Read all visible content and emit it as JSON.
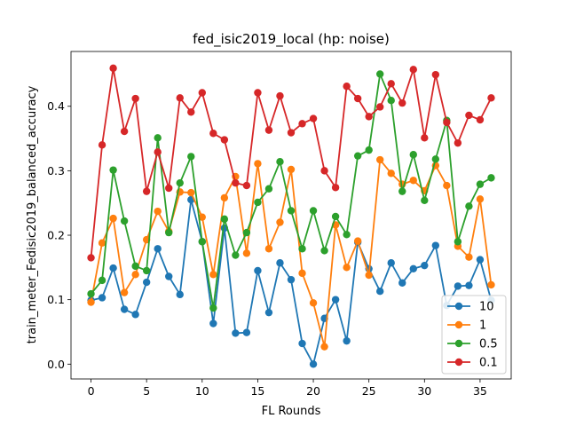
{
  "chart_data": {
    "type": "line",
    "title": "fed_isic2019_local (hp: noise)",
    "xlabel": "FL Rounds",
    "ylabel": "train_meter_Fedisic2019_balanced_accuracy",
    "xlim": [
      -1.8,
      37.8
    ],
    "ylim": [
      -0.023,
      0.485
    ],
    "xticks": [
      0,
      5,
      10,
      15,
      20,
      25,
      30,
      35
    ],
    "yticks": [
      0.0,
      0.1,
      0.2,
      0.3,
      0.4
    ],
    "ytick_labels": [
      "0.0",
      "0.1",
      "0.2",
      "0.3",
      "0.4"
    ],
    "grid": false,
    "legend_position": "lower-right",
    "x": [
      0,
      1,
      2,
      3,
      4,
      5,
      6,
      7,
      8,
      9,
      10,
      11,
      12,
      13,
      14,
      15,
      16,
      17,
      18,
      19,
      20,
      21,
      22,
      23,
      24,
      25,
      26,
      27,
      28,
      29,
      30,
      31,
      32,
      33,
      34,
      35,
      36
    ],
    "series": [
      {
        "name": "10",
        "color": "#1f77b4",
        "values": [
          0.099,
          0.103,
          0.149,
          0.085,
          0.077,
          0.127,
          0.179,
          0.136,
          0.108,
          0.255,
          0.19,
          0.063,
          0.211,
          0.048,
          0.049,
          0.145,
          0.08,
          0.157,
          0.131,
          0.032,
          0.0,
          0.071,
          0.1,
          0.036,
          0.189,
          0.148,
          0.113,
          0.157,
          0.126,
          0.148,
          0.153,
          0.184,
          0.091,
          0.121,
          0.122,
          0.162,
          0.099
        ]
      },
      {
        "name": "1",
        "color": "#ff7f0e",
        "values": [
          0.096,
          0.188,
          0.226,
          0.111,
          0.139,
          0.193,
          0.237,
          0.206,
          0.267,
          0.266,
          0.228,
          0.139,
          0.258,
          0.291,
          0.172,
          0.311,
          0.179,
          0.22,
          0.302,
          0.141,
          0.095,
          0.027,
          0.216,
          0.15,
          0.191,
          0.138,
          0.317,
          0.296,
          0.279,
          0.285,
          0.269,
          0.308,
          0.277,
          0.183,
          0.166,
          0.256,
          0.123
        ]
      },
      {
        "name": "0.5",
        "color": "#2ca02c",
        "values": [
          0.109,
          0.13,
          0.301,
          0.222,
          0.152,
          0.145,
          0.351,
          0.204,
          0.281,
          0.322,
          0.19,
          0.087,
          0.225,
          0.169,
          0.204,
          0.251,
          0.272,
          0.314,
          0.238,
          0.179,
          0.238,
          0.176,
          0.229,
          0.201,
          0.323,
          0.332,
          0.45,
          0.409,
          0.268,
          0.325,
          0.254,
          0.318,
          0.378,
          0.19,
          0.245,
          0.279,
          0.289
        ]
      },
      {
        "name": "0.1",
        "color": "#d62728",
        "values": [
          0.165,
          0.34,
          0.459,
          0.361,
          0.412,
          0.268,
          0.329,
          0.273,
          0.413,
          0.391,
          0.421,
          0.358,
          0.348,
          0.281,
          0.277,
          0.421,
          0.363,
          0.416,
          0.359,
          0.373,
          0.381,
          0.3,
          0.274,
          0.431,
          0.412,
          0.384,
          0.399,
          0.435,
          0.405,
          0.457,
          0.351,
          0.449,
          0.375,
          0.343,
          0.386,
          0.379,
          0.413
        ]
      }
    ]
  }
}
